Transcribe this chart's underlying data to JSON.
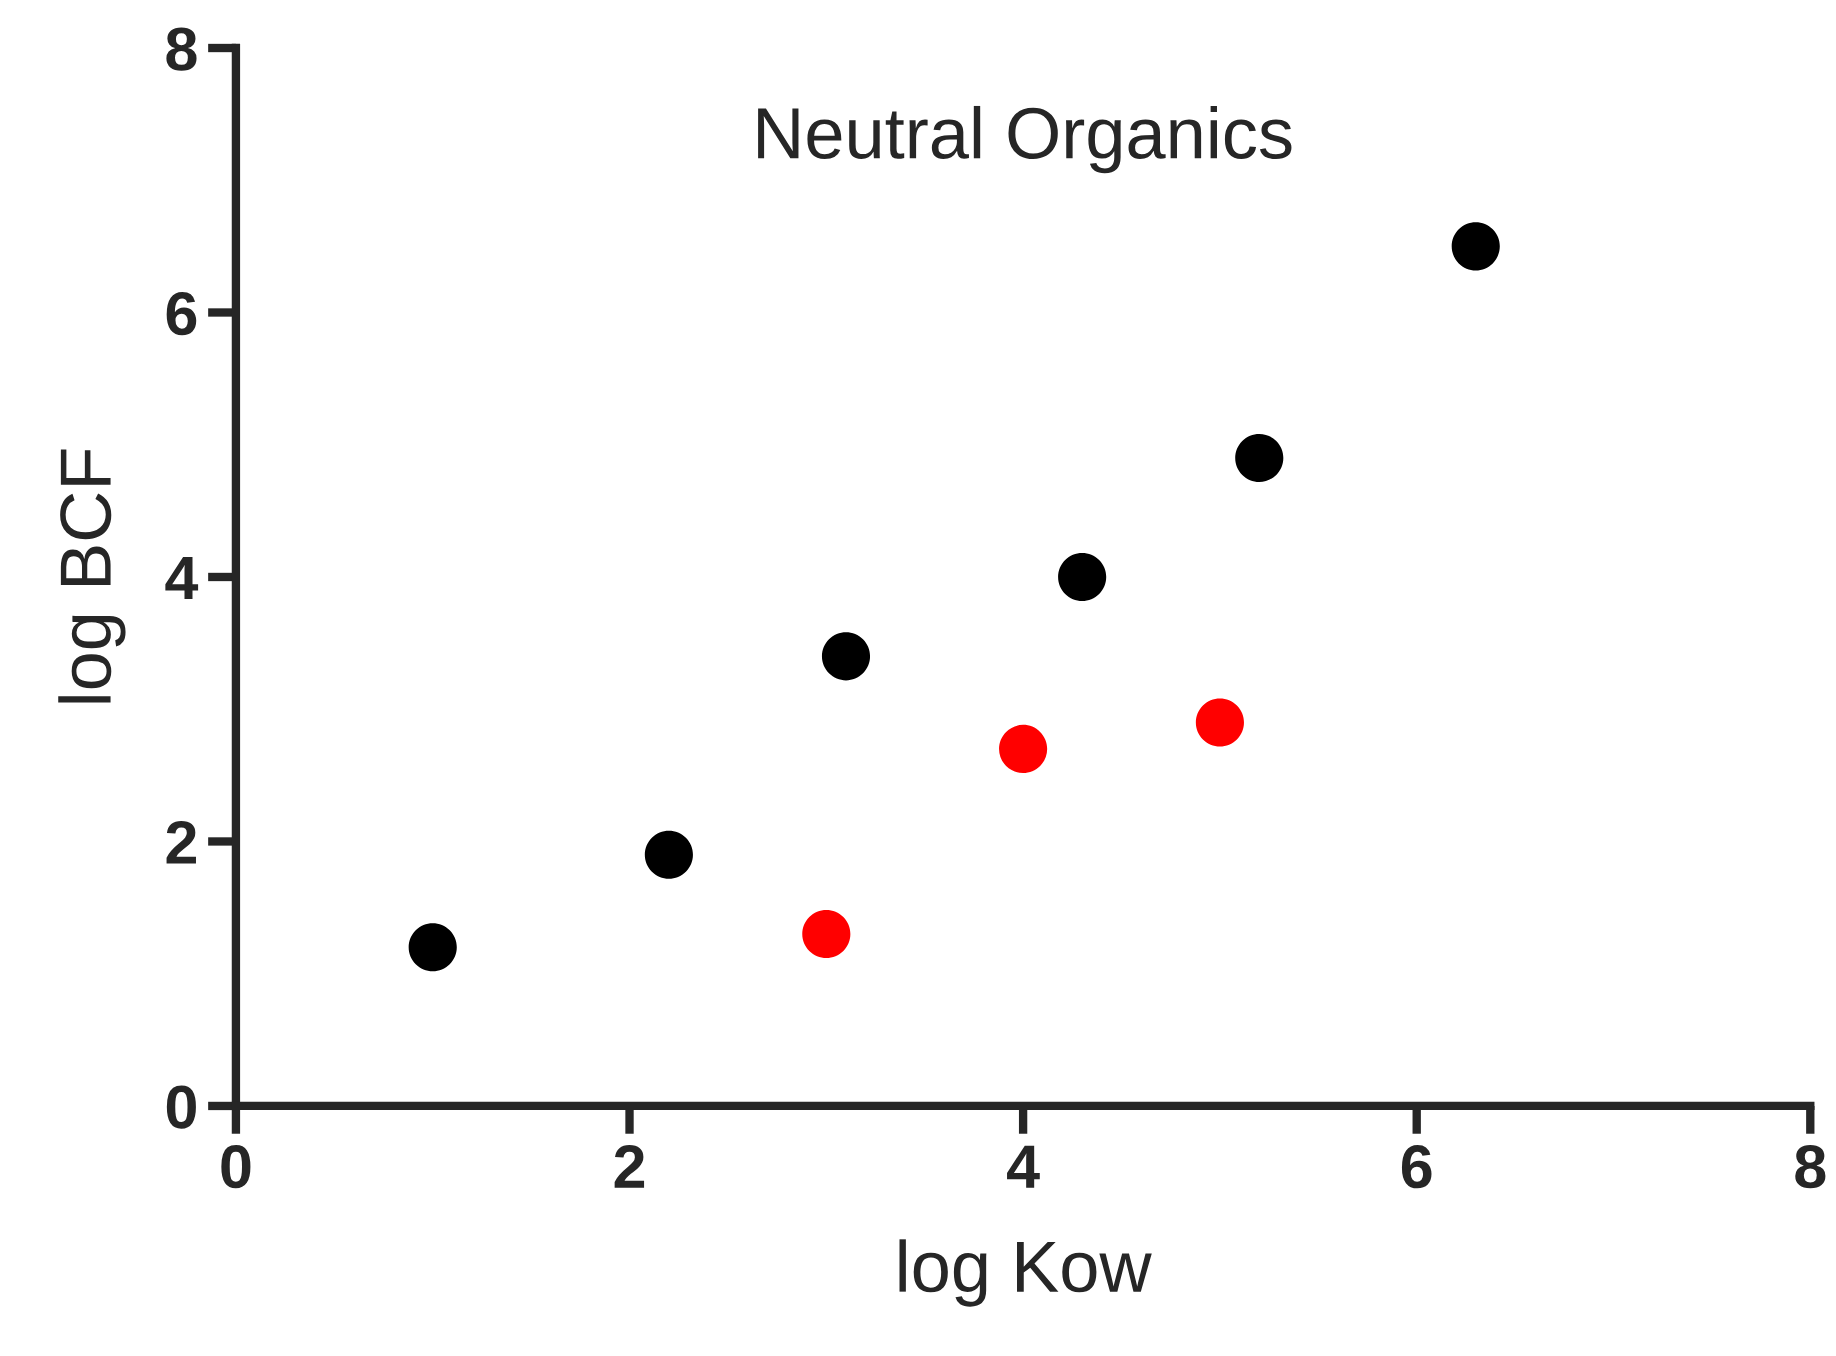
{
  "chart_data": {
    "type": "scatter",
    "title": "Neutral Organics",
    "xlabel": "log Kow",
    "ylabel": "log BCF",
    "series": [
      {
        "color": "#000000",
        "x": [
          1.0,
          2.2,
          3.1,
          4.3,
          5.2,
          6.3
        ],
        "values": [
          1.2,
          1.9,
          3.4,
          4.0,
          4.9,
          6.5
        ]
      },
      {
        "color": "#ff0000",
        "x": [
          3.0,
          4.0,
          5.0
        ],
        "values": [
          1.3,
          2.7,
          2.9
        ]
      }
    ],
    "xlim": [
      0,
      8
    ],
    "ylim": [
      0,
      8
    ],
    "xticks": [
      0,
      2,
      4,
      6,
      8
    ],
    "yticks": [
      0,
      2,
      4,
      6,
      8
    ],
    "marker": "circle",
    "grid": false
  }
}
